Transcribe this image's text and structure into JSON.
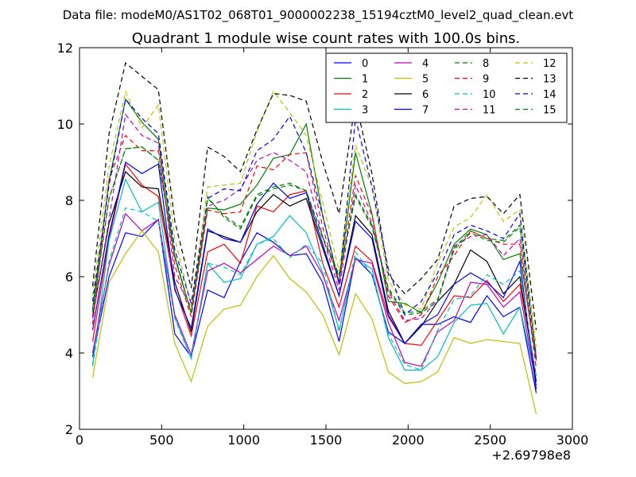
{
  "header": {
    "data_file": "Data file: modeM0/AS1T02_068T01_9000002238_15194cztM0_level2_quad_clean.evt"
  },
  "chart_data": {
    "type": "line",
    "title": "Quadrant 1 module wise count rates with 100.0s bins.",
    "xlabel": "",
    "ylabel": "",
    "xlim": [
      0,
      3000
    ],
    "ylim": [
      2,
      12
    ],
    "x_offset_label": "+2.69798e8",
    "xticks": [
      0,
      500,
      1000,
      1500,
      2000,
      2500,
      3000
    ],
    "xtick_labels": [
      "0",
      "500",
      "1000",
      "1500",
      "2000",
      "2500",
      "3000"
    ],
    "yticks": [
      2,
      4,
      6,
      8,
      10,
      12
    ],
    "ytick_labels": [
      "2",
      "4",
      "6",
      "8",
      "10",
      "12"
    ],
    "legend_position": "top-right",
    "x": [
      80,
      180,
      280,
      380,
      480,
      580,
      680,
      780,
      880,
      980,
      1080,
      1180,
      1280,
      1380,
      1480,
      1580,
      1680,
      1780,
      1880,
      1980,
      2080,
      2180,
      2280,
      2380,
      2480,
      2580,
      2680,
      2780
    ],
    "series": [
      {
        "name": "0",
        "color": "#0000ff",
        "dash": "solid",
        "values": [
          3.9,
          6.0,
          7.15,
          7.05,
          7.5,
          4.5,
          3.9,
          5.65,
          5.45,
          6.4,
          7.15,
          6.9,
          6.55,
          6.6,
          5.85,
          4.3,
          6.5,
          6.05,
          4.55,
          4.25,
          4.75,
          4.75,
          4.95,
          4.8,
          5.5,
          4.95,
          5.2,
          2.95
        ]
      },
      {
        "name": "1",
        "color": "#008000",
        "dash": "solid",
        "values": [
          5.15,
          8.5,
          10.65,
          10.05,
          9.6,
          6.5,
          5.05,
          7.8,
          7.75,
          7.9,
          8.4,
          9.1,
          9.2,
          10.0,
          7.6,
          5.85,
          9.25,
          7.65,
          5.35,
          5.3,
          5.05,
          5.85,
          6.85,
          7.25,
          7.1,
          6.45,
          6.6,
          3.8
        ]
      },
      {
        "name": "2",
        "color": "#ff0000",
        "dash": "solid",
        "values": [
          4.3,
          7.0,
          8.95,
          8.4,
          8.1,
          5.7,
          4.45,
          6.65,
          6.85,
          6.35,
          7.85,
          7.7,
          8.15,
          8.25,
          6.35,
          5.2,
          6.8,
          6.4,
          4.95,
          4.25,
          4.2,
          4.85,
          5.5,
          5.45,
          5.9,
          5.35,
          5.8,
          3.4
        ]
      },
      {
        "name": "3",
        "color": "#00bfbf",
        "dash": "solid",
        "values": [
          3.7,
          6.95,
          8.55,
          7.7,
          7.95,
          4.95,
          3.85,
          6.35,
          5.85,
          5.95,
          6.85,
          7.05,
          7.6,
          7.15,
          6.1,
          4.6,
          6.5,
          6.2,
          4.4,
          3.55,
          3.55,
          3.9,
          4.8,
          5.25,
          5.3,
          4.5,
          5.2,
          3.25
        ]
      },
      {
        "name": "4",
        "color": "#bf00bf",
        "dash": "solid",
        "values": [
          4.0,
          6.3,
          7.65,
          7.2,
          7.5,
          5.0,
          3.95,
          6.15,
          6.35,
          6.1,
          6.45,
          6.8,
          6.55,
          6.8,
          6.05,
          4.85,
          6.45,
          6.35,
          4.8,
          3.75,
          3.65,
          4.55,
          4.85,
          5.85,
          5.8,
          5.2,
          5.6,
          3.15
        ]
      },
      {
        "name": "5",
        "color": "#bfbf00",
        "dash": "solid",
        "values": [
          3.35,
          5.85,
          6.6,
          7.2,
          6.65,
          4.25,
          3.25,
          4.7,
          5.15,
          5.25,
          6.0,
          6.55,
          5.95,
          5.6,
          5.0,
          3.95,
          5.55,
          4.9,
          3.5,
          3.2,
          3.25,
          3.5,
          4.4,
          4.25,
          4.35,
          4.3,
          4.25,
          2.4
        ]
      },
      {
        "name": "6",
        "color": "#000000",
        "dash": "solid",
        "values": [
          4.95,
          7.4,
          8.75,
          8.35,
          8.3,
          5.85,
          4.55,
          7.2,
          7.05,
          6.9,
          7.7,
          8.15,
          7.85,
          8.05,
          6.75,
          5.5,
          7.6,
          7.1,
          5.1,
          4.25,
          4.7,
          5.35,
          5.8,
          6.7,
          6.4,
          5.55,
          6.0,
          3.25
        ]
      },
      {
        "name": "7",
        "color": "#0000ff",
        "dash": "solid",
        "values": [
          4.6,
          7.1,
          9.0,
          8.7,
          8.95,
          5.65,
          4.65,
          7.25,
          7.0,
          6.9,
          7.9,
          8.45,
          8.05,
          8.2,
          6.85,
          5.5,
          7.45,
          7.0,
          5.0,
          4.25,
          4.75,
          5.0,
          5.8,
          6.1,
          5.85,
          5.45,
          6.4,
          3.05
        ]
      },
      {
        "name": "8",
        "color": "#008000",
        "dash": "dashed",
        "values": [
          5.05,
          8.05,
          9.35,
          9.4,
          9.05,
          6.55,
          5.05,
          8.1,
          7.55,
          7.25,
          8.1,
          8.3,
          8.4,
          8.25,
          7.0,
          6.0,
          8.1,
          7.3,
          5.65,
          5.0,
          5.05,
          5.35,
          6.75,
          7.2,
          7.0,
          6.95,
          7.35,
          3.9
        ]
      },
      {
        "name": "9",
        "color": "#ff0000",
        "dash": "dashed",
        "values": [
          4.75,
          8.55,
          9.7,
          9.3,
          9.3,
          6.3,
          4.95,
          7.75,
          7.65,
          7.7,
          8.9,
          8.8,
          9.2,
          9.25,
          7.3,
          5.8,
          8.65,
          7.6,
          5.5,
          4.8,
          5.0,
          6.0,
          6.55,
          7.2,
          7.0,
          6.85,
          6.85,
          3.6
        ]
      },
      {
        "name": "10",
        "color": "#00bfbf",
        "dash": "dashed",
        "values": [
          3.65,
          6.4,
          7.8,
          7.7,
          7.45,
          4.9,
          3.85,
          6.35,
          6.25,
          6.05,
          6.85,
          7.0,
          6.5,
          6.85,
          6.35,
          4.55,
          6.65,
          6.05,
          4.5,
          3.7,
          3.55,
          4.6,
          5.4,
          5.5,
          6.05,
          5.8,
          6.15,
          3.35
        ]
      },
      {
        "name": "11",
        "color": "#bf00bf",
        "dash": "dashed",
        "values": [
          4.9,
          7.5,
          10.25,
          9.7,
          9.5,
          6.0,
          5.2,
          7.85,
          8.0,
          8.3,
          9.05,
          9.25,
          9.05,
          8.75,
          7.05,
          5.65,
          8.4,
          7.4,
          5.6,
          4.85,
          4.9,
          5.4,
          6.8,
          7.05,
          7.1,
          6.55,
          7.0,
          3.8
        ]
      },
      {
        "name": "12",
        "color": "#bfbf00",
        "dash": "dashed",
        "values": [
          5.5,
          8.9,
          10.85,
          9.9,
          10.5,
          7.0,
          5.25,
          8.35,
          8.4,
          8.45,
          9.8,
          10.85,
          10.3,
          9.7,
          7.95,
          6.15,
          9.45,
          8.35,
          5.9,
          5.25,
          5.15,
          6.35,
          7.3,
          7.55,
          8.15,
          7.45,
          7.75,
          4.15
        ]
      },
      {
        "name": "13",
        "color": "#000000",
        "dash": "dashed",
        "values": [
          5.75,
          9.75,
          11.6,
          11.25,
          10.9,
          7.45,
          5.7,
          9.4,
          9.15,
          8.75,
          9.85,
          10.8,
          10.75,
          10.6,
          9.0,
          7.65,
          10.6,
          8.7,
          6.05,
          5.55,
          5.95,
          6.45,
          7.85,
          8.05,
          8.1,
          7.65,
          8.15,
          4.6
        ]
      },
      {
        "name": "14",
        "color": "#0000ff",
        "dash": "dashed",
        "values": [
          5.35,
          8.4,
          10.65,
          10.15,
          9.75,
          6.7,
          5.3,
          8.05,
          8.3,
          8.25,
          9.3,
          9.6,
          10.2,
          9.25,
          7.6,
          5.8,
          10.15,
          8.35,
          6.2,
          5.0,
          5.35,
          6.1,
          7.1,
          7.35,
          7.2,
          7.0,
          7.65,
          3.85
        ]
      },
      {
        "name": "15",
        "color": "#008000",
        "dash": "dashed",
        "values": [
          5.1,
          8.05,
          9.35,
          9.4,
          9.05,
          6.55,
          5.05,
          8.05,
          7.6,
          7.3,
          8.15,
          8.35,
          8.45,
          8.25,
          7.05,
          6.05,
          8.15,
          7.35,
          5.7,
          5.05,
          5.1,
          5.4,
          6.7,
          7.15,
          6.95,
          6.9,
          7.3,
          3.95
        ]
      }
    ]
  }
}
